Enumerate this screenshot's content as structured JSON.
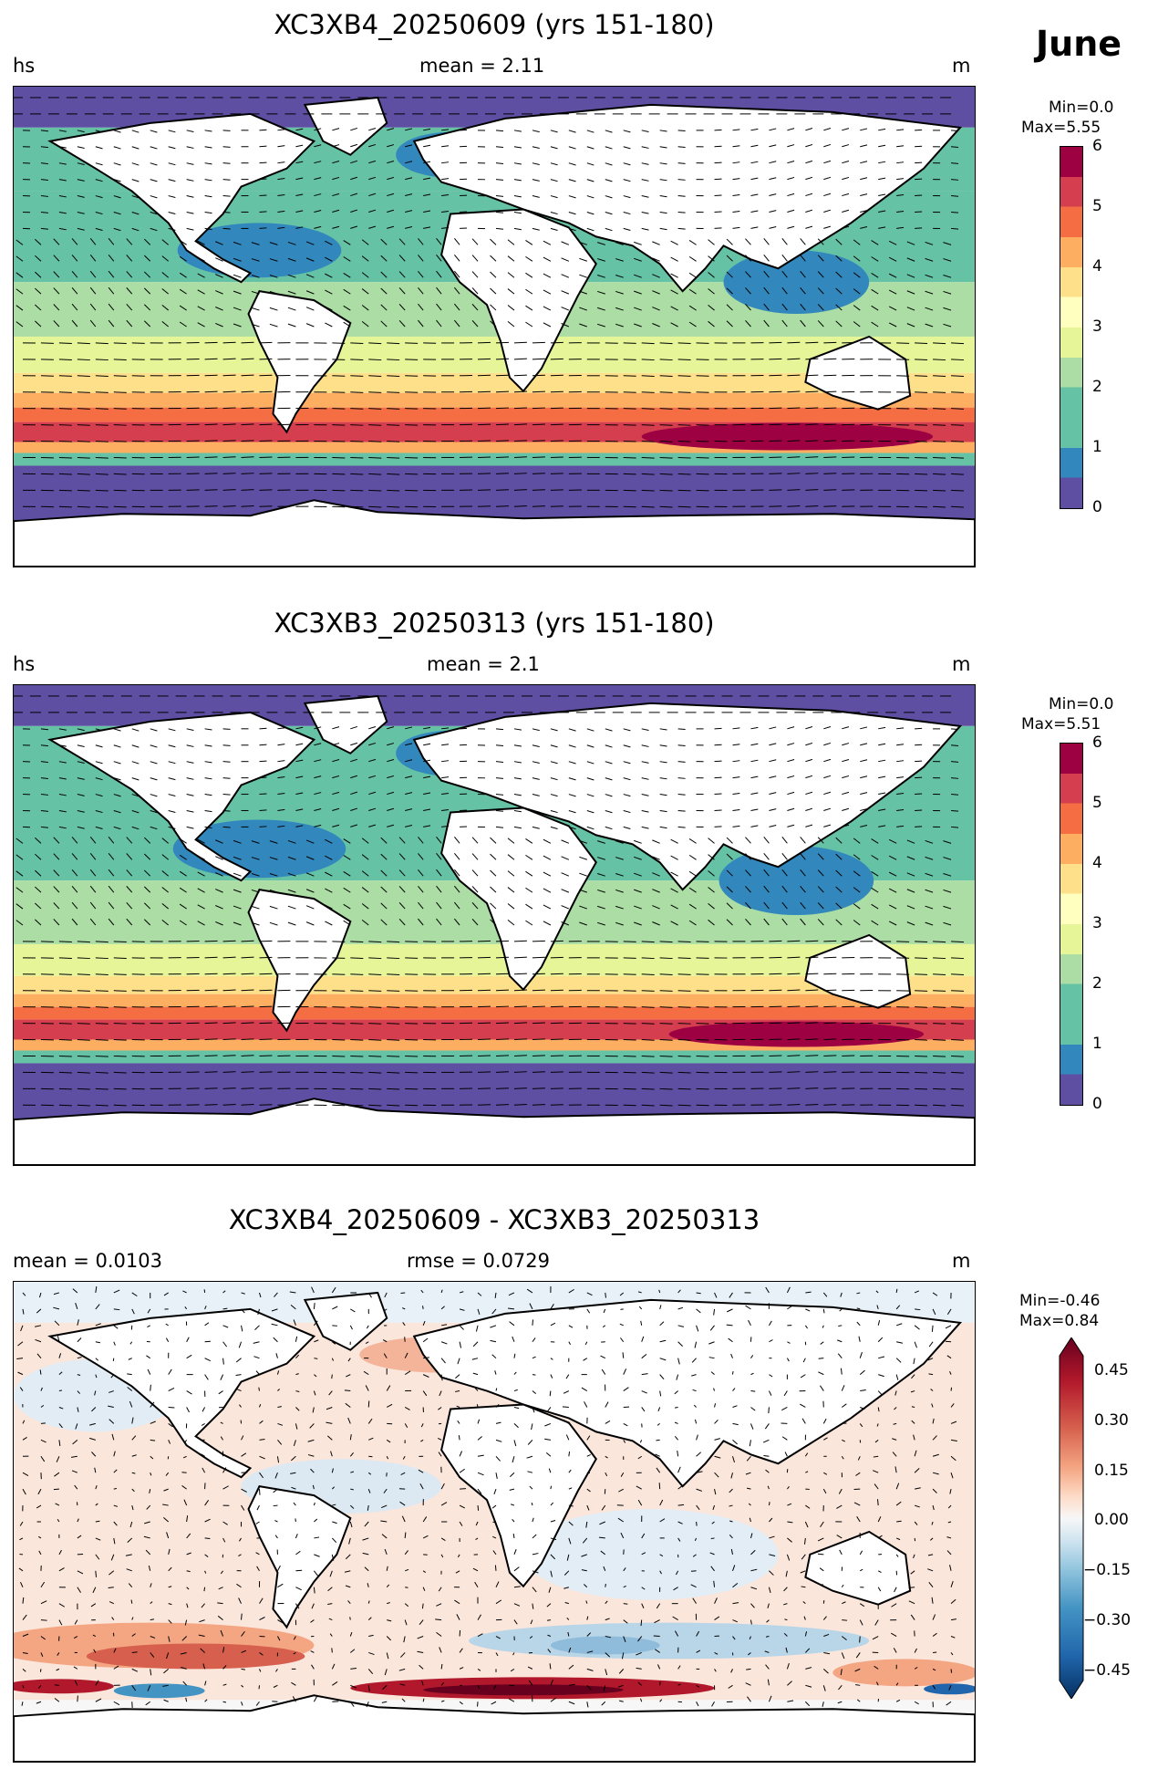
{
  "month": "June",
  "panels": [
    {
      "title": "XC3XB4_20250609 (yrs 151-180)",
      "left_label": "hs",
      "center_label": "mean = 2.11",
      "right_label": "m",
      "min_text": "Min=0.0",
      "max_text": "Max=5.55",
      "colorbar_ticks": [
        "6",
        "5",
        "4",
        "3",
        "2",
        "1",
        "0"
      ],
      "colormap": "Spectral_r"
    },
    {
      "title": "XC3XB3_20250313 (yrs 151-180)",
      "left_label": "hs",
      "center_label": "mean = 2.1",
      "right_label": "m",
      "min_text": "Min=0.0",
      "max_text": "Max=5.51",
      "colorbar_ticks": [
        "6",
        "5",
        "4",
        "3",
        "2",
        "1",
        "0"
      ],
      "colormap": "Spectral_r"
    },
    {
      "title": "XC3XB4_20250609 - XC3XB3_20250313",
      "left_label": "mean = 0.0103",
      "center_label": "rmse = 0.0729",
      "right_label": "m",
      "min_text": "Min=-0.46",
      "max_text": "Max=0.84",
      "colorbar_ticks": [
        "0.45",
        "0.30",
        "0.15",
        "0.00",
        "−0.15",
        "−0.30",
        "−0.45"
      ],
      "colormap": "RdBu_r"
    }
  ],
  "colors": {
    "spectral": [
      "#5e4fa2",
      "#3288bd",
      "#66c2a5",
      "#abdda4",
      "#e6f598",
      "#fee08b",
      "#fdae61",
      "#f46d43",
      "#d53e4f",
      "#9e0142"
    ],
    "diverging": [
      "#053061",
      "#2166ac",
      "#4393c3",
      "#92c5de",
      "#d1e5f0",
      "#f7f7f7",
      "#fddbc7",
      "#f4a582",
      "#d6604d",
      "#b2182b",
      "#67001f"
    ],
    "land": "#ffffff",
    "coast": "#000000"
  }
}
